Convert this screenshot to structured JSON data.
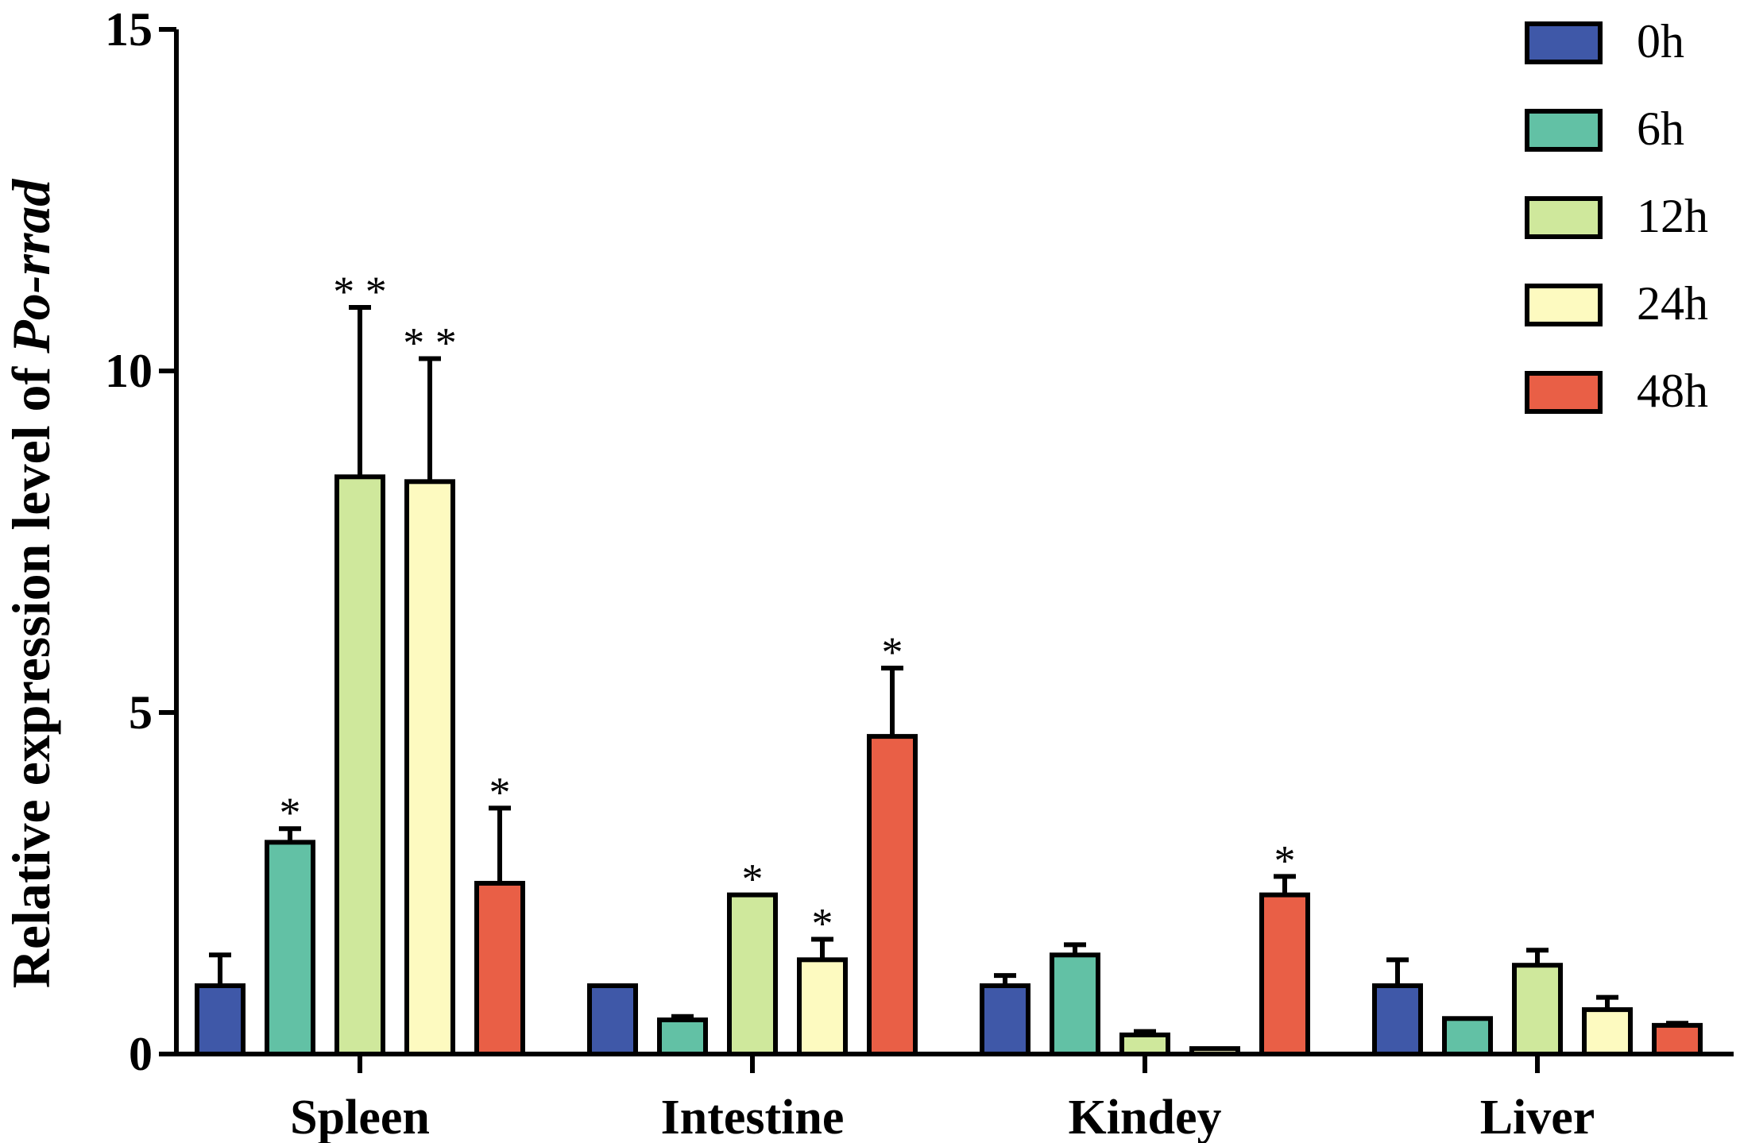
{
  "chart_data": {
    "type": "bar",
    "title": "",
    "xlabel": "",
    "ylabel_prefix": "Relative expression level of ",
    "ylabel_gene": "Po-rrad",
    "ylim": [
      0,
      15
    ],
    "yticks": [
      0,
      5,
      10,
      15
    ],
    "categories": [
      "Spleen",
      "Intestine",
      "Kindey",
      "Liver"
    ],
    "series": [
      {
        "name": "0h",
        "color": "#3f58a8",
        "values": [
          1.0,
          1.0,
          1.0,
          1.0
        ],
        "errors": [
          0.45,
          0.0,
          0.15,
          0.38
        ],
        "sig": [
          "",
          "",
          "",
          ""
        ]
      },
      {
        "name": "6h",
        "color": "#62c1a5",
        "values": [
          3.1,
          0.5,
          1.45,
          0.52
        ],
        "errors": [
          0.2,
          0.05,
          0.15,
          0.0
        ],
        "sig": [
          "*",
          "",
          "",
          ""
        ]
      },
      {
        "name": "12h",
        "color": "#cfe89c",
        "values": [
          8.45,
          2.33,
          0.28,
          1.3
        ],
        "errors": [
          2.48,
          0.0,
          0.05,
          0.22
        ],
        "sig": [
          "* *",
          "*",
          "",
          ""
        ]
      },
      {
        "name": "24h",
        "color": "#fdfac0",
        "values": [
          8.38,
          1.38,
          0.08,
          0.65
        ],
        "errors": [
          1.8,
          0.3,
          0.0,
          0.18
        ],
        "sig": [
          "* *",
          "*",
          "",
          ""
        ]
      },
      {
        "name": "48h",
        "color": "#e95f46",
        "values": [
          2.5,
          4.65,
          2.33,
          0.42
        ],
        "errors": [
          1.1,
          1.0,
          0.27,
          0.03
        ],
        "sig": [
          "*",
          "*",
          "*",
          ""
        ]
      }
    ],
    "legend_position": "top-right"
  }
}
